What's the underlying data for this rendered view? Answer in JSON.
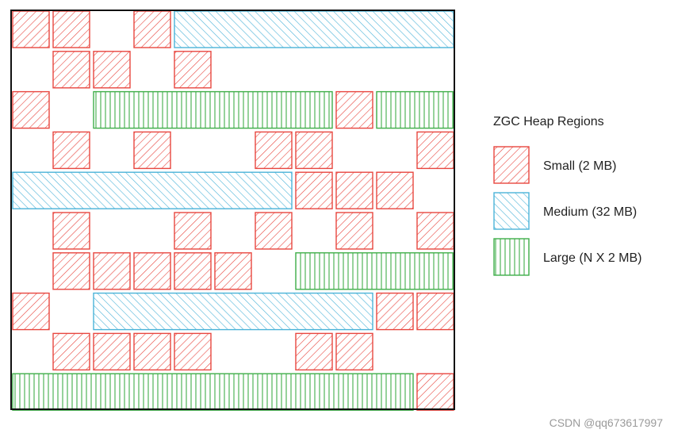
{
  "legend": {
    "title": "ZGC Heap Regions",
    "items": [
      {
        "key": "small",
        "label": "Small (2 MB)"
      },
      {
        "key": "medium",
        "label": "Medium (32 MB)"
      },
      {
        "key": "large",
        "label": "Large (N X 2 MB)"
      }
    ]
  },
  "region_types": {
    "small": {
      "color": "#e8463f",
      "pattern": "diagonal-hatch"
    },
    "medium": {
      "color": "#4bb3d8",
      "pattern": "diagonal-hatch"
    },
    "large": {
      "color": "#3fae49",
      "pattern": "vertical-lines"
    }
  },
  "heap": {
    "rows": [
      [
        {
          "type": "small",
          "col": 0
        },
        {
          "type": "small",
          "col": 1
        },
        {
          "type": "small",
          "col": 3
        },
        {
          "type": "medium",
          "col": 4,
          "span": 7
        }
      ],
      [
        {
          "type": "small",
          "col": 1
        },
        {
          "type": "small",
          "col": 2
        },
        {
          "type": "small",
          "col": 4
        }
      ],
      [
        {
          "type": "small",
          "col": 0
        },
        {
          "type": "large",
          "col": 2,
          "span": 6
        },
        {
          "type": "small",
          "col": 8
        },
        {
          "type": "large",
          "col": 9,
          "span": 2
        }
      ],
      [
        {
          "type": "small",
          "col": 1
        },
        {
          "type": "small",
          "col": 3
        },
        {
          "type": "small",
          "col": 6
        },
        {
          "type": "small",
          "col": 7
        },
        {
          "type": "small",
          "col": 10
        }
      ],
      [
        {
          "type": "medium",
          "col": 0,
          "span": 7
        },
        {
          "type": "small",
          "col": 7
        },
        {
          "type": "small",
          "col": 8
        },
        {
          "type": "small",
          "col": 9
        }
      ],
      [
        {
          "type": "small",
          "col": 1
        },
        {
          "type": "small",
          "col": 4
        },
        {
          "type": "small",
          "col": 6
        },
        {
          "type": "small",
          "col": 8
        },
        {
          "type": "small",
          "col": 10
        }
      ],
      [
        {
          "type": "small",
          "col": 1
        },
        {
          "type": "small",
          "col": 2
        },
        {
          "type": "small",
          "col": 3
        },
        {
          "type": "small",
          "col": 4
        },
        {
          "type": "small",
          "col": 5
        },
        {
          "type": "large",
          "col": 7,
          "span": 4
        }
      ],
      [
        {
          "type": "small",
          "col": 0
        },
        {
          "type": "medium",
          "col": 2,
          "span": 7
        },
        {
          "type": "small",
          "col": 9
        },
        {
          "type": "small",
          "col": 10
        }
      ],
      [
        {
          "type": "small",
          "col": 1
        },
        {
          "type": "small",
          "col": 2
        },
        {
          "type": "small",
          "col": 3
        },
        {
          "type": "small",
          "col": 4
        },
        {
          "type": "small",
          "col": 7
        },
        {
          "type": "small",
          "col": 8
        }
      ],
      [
        {
          "type": "large",
          "col": 0,
          "span": 10
        },
        {
          "type": "small",
          "col": 10
        }
      ]
    ]
  },
  "watermark": "CSDN @qq673617997"
}
